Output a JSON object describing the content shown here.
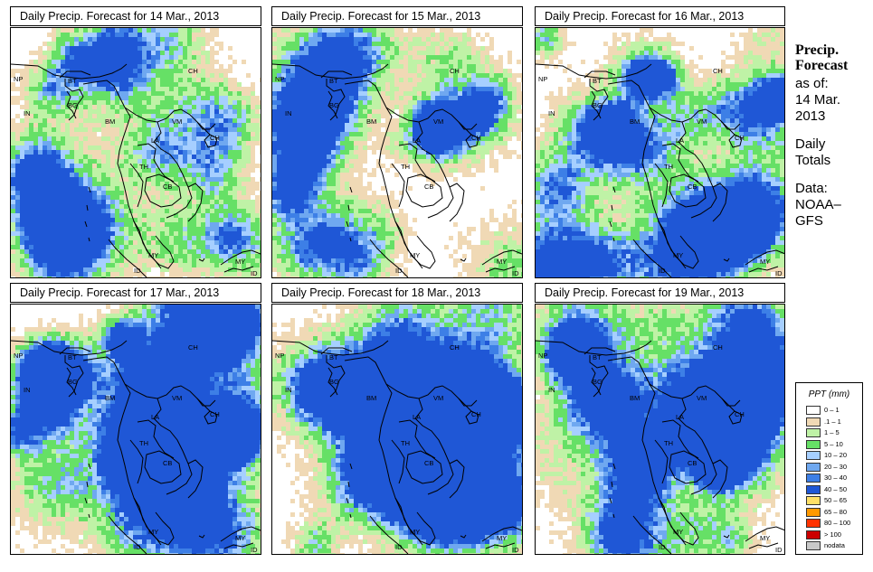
{
  "panels": [
    {
      "title": "Daily Precip. Forecast for  14 Mar., 2013",
      "seed": 11,
      "wet": 0.9
    },
    {
      "title": "Daily Precip. Forecast for  15 Mar., 2013",
      "seed": 23,
      "wet": 0.85
    },
    {
      "title": "Daily Precip. Forecast for  16 Mar., 2013",
      "seed": 37,
      "wet": 1.1
    },
    {
      "title": "Daily Precip. Forecast for  17 Mar., 2013",
      "seed": 41,
      "wet": 1.25
    },
    {
      "title": "Daily Precip. Forecast for  18 Mar., 2013",
      "seed": 53,
      "wet": 1.0
    },
    {
      "title": "Daily Precip. Forecast for  19 Mar., 2013",
      "seed": 67,
      "wet": 1.05
    }
  ],
  "country_labels": [
    "NP",
    "BT",
    "BG",
    "IN",
    "BM",
    "CH",
    "VM",
    "CH",
    "LA",
    "TH",
    "CB",
    "MY",
    "MY",
    "ID",
    "ID"
  ],
  "sidebar": {
    "heading_line1": "Precip.",
    "heading_line2": "Forecast",
    "asof": "as of:",
    "date_line1": "14 Mar.",
    "date_line2": "2013",
    "totals_line1": "Daily",
    "totals_line2": "Totals",
    "data_line1": "Data:",
    "data_line2": "NOAA–",
    "data_line3": "GFS"
  },
  "legend": {
    "title": "PPT (mm)",
    "items": [
      {
        "label": "0 – 1",
        "color": "#ffffff"
      },
      {
        "label": ".1 – 1",
        "color": "#f0d9b5"
      },
      {
        "label": "1 – 5",
        "color": "#bff2a6"
      },
      {
        "label": "5 – 10",
        "color": "#66e066"
      },
      {
        "label": "10 – 20",
        "color": "#a6cfff"
      },
      {
        "label": "20 – 30",
        "color": "#6fa8f0"
      },
      {
        "label": "30 – 40",
        "color": "#3d7fe6"
      },
      {
        "label": "40 – 50",
        "color": "#1f57d6"
      },
      {
        "label": "50 – 65",
        "color": "#ffe066"
      },
      {
        "label": "65 – 80",
        "color": "#ff9900"
      },
      {
        "label": "80 – 100",
        "color": "#ff3300"
      },
      {
        "label": "> 100",
        "color": "#cc0000"
      },
      {
        "label": "nodata",
        "color": "#c8c8c8"
      }
    ]
  }
}
